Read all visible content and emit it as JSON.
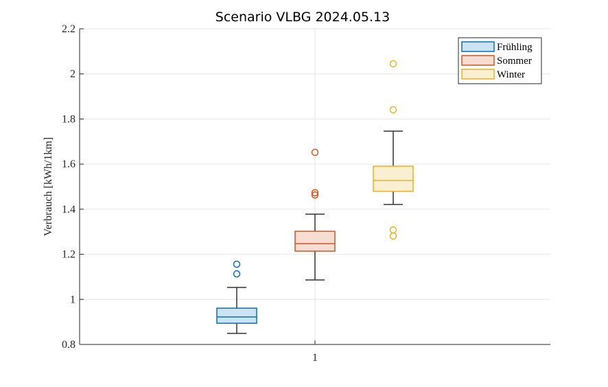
{
  "chart_data": {
    "type": "boxplot",
    "title": "Scenario VLBG 2024.05.13",
    "xlabel": "",
    "ylabel": "Verbrauch [kWh/1km]",
    "ylim": [
      0.8,
      2.2
    ],
    "yticks": [
      0.8,
      1,
      1.2,
      1.4,
      1.6,
      1.8,
      2,
      2.2
    ],
    "ytick_labels": [
      "0.8",
      "1",
      "1.2",
      "1.4",
      "1.6",
      "1.8",
      "2",
      "2.2"
    ],
    "categories": [
      "1"
    ],
    "grid": true,
    "legend_position": "top-right",
    "series": [
      {
        "name": "Frühling",
        "color": "#0072BD",
        "fill": "#CCE3F2",
        "whisker_low": 0.849,
        "q1": 0.894,
        "median": 0.922,
        "q3": 0.961,
        "whisker_high": 1.053,
        "outliers": [
          1.113,
          1.156
        ]
      },
      {
        "name": "Sommer",
        "color": "#D95319",
        "fill": "#F7DDD1",
        "whisker_low": 1.086,
        "q1": 1.214,
        "median": 1.247,
        "q3": 1.302,
        "whisker_high": 1.378,
        "outliers": [
          1.463,
          1.473,
          1.652
        ]
      },
      {
        "name": "Winter",
        "color": "#EDB120",
        "fill": "#FBEFD2",
        "whisker_low": 1.421,
        "q1": 1.479,
        "median": 1.527,
        "q3": 1.591,
        "whisker_high": 1.746,
        "outliers": [
          1.281,
          1.308,
          1.841,
          2.045
        ]
      }
    ]
  }
}
